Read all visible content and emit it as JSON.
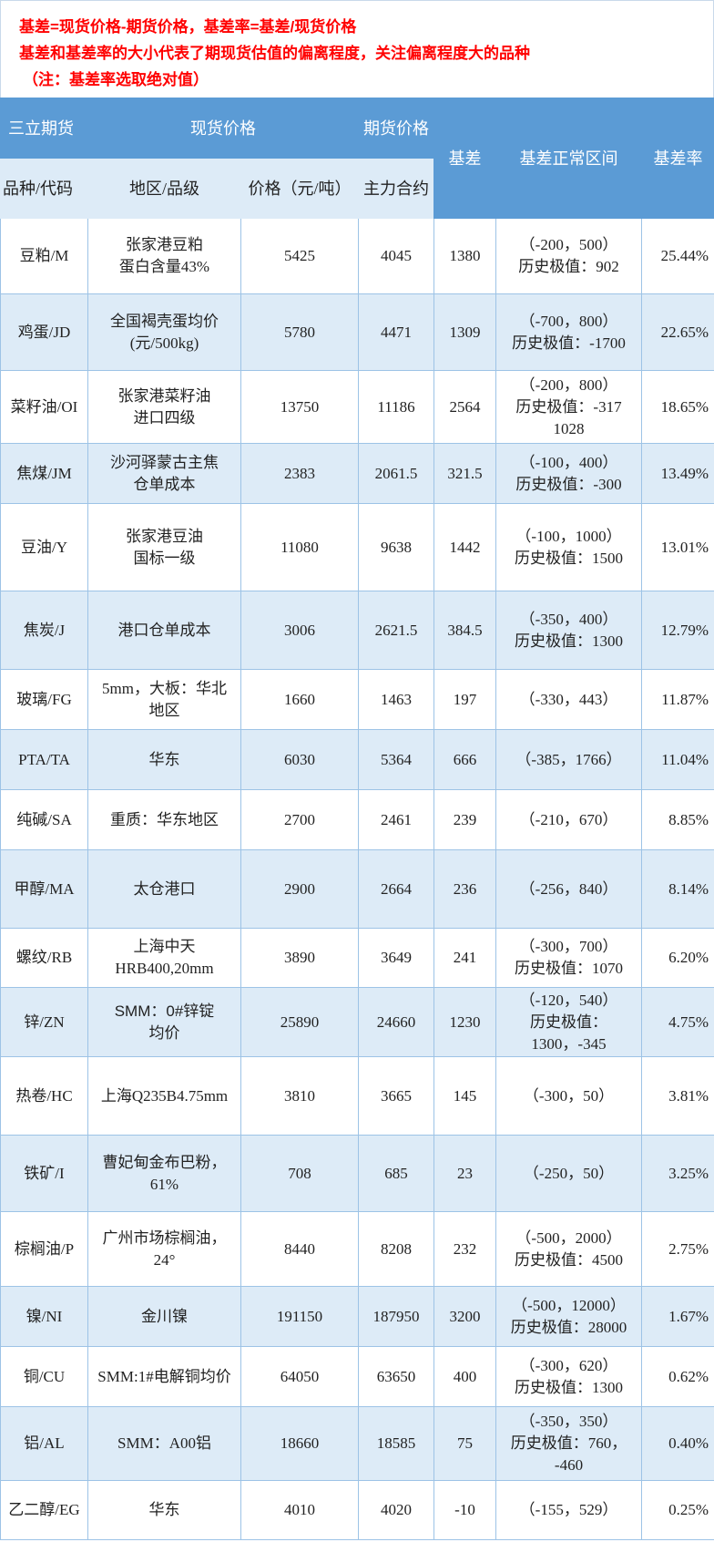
{
  "notes": [
    "基差=现货价格-期货价格，基差率=基差/现货价格",
    "基差和基差率的大小代表了期现货估值的偏离程度，关注偏离程度大的品种",
    "（注：基差率选取绝对值）"
  ],
  "header": {
    "company": "三立期货",
    "spot": "现货价格",
    "futures": "期货价格",
    "basis": "基差",
    "range": "基差正常区间",
    "rate": "基差率",
    "variety": "品种/代码",
    "region": "地区/品级",
    "price": "价格（元/吨）",
    "contract": "主力合约"
  },
  "colors": {
    "header_bg": "#5b9bd5",
    "alt_row": "#ddebf7",
    "note_text": "#ff0000"
  },
  "rows": [
    {
      "v": "豆粕/M",
      "r": "张家港豆粕\n蛋白含量43%",
      "p": "5425",
      "f": "4045",
      "b": "1380",
      "g": "（-200，500）\n历史极值：902",
      "rate": "25.44%"
    },
    {
      "v": "鸡蛋/JD",
      "r": "全国褐壳蛋均价\n(元/500kg)",
      "p": "5780",
      "f": "4471",
      "b": "1309",
      "g": "（-700，800）\n历史极值：-1700",
      "rate": "22.65%"
    },
    {
      "v": "菜籽油/OI",
      "r": "张家港菜籽油\n进口四级",
      "p": "13750",
      "f": "11186",
      "b": "2564",
      "g": "（-200，800）\n历史极值：-317\n1028",
      "rate": "18.65%"
    },
    {
      "v": "焦煤/JM",
      "r": "沙河驿蒙古主焦\n仓单成本",
      "p": "2383",
      "f": "2061.5",
      "b": "321.5",
      "g": "（-100，400）\n历史极值：-300",
      "rate": "13.49%"
    },
    {
      "v": "豆油/Y",
      "r": "张家港豆油\n国标一级",
      "p": "11080",
      "f": "9638",
      "b": "1442",
      "g": "（-100，1000）\n历史极值：1500",
      "rate": "13.01%"
    },
    {
      "v": "焦炭/J",
      "r": "港口仓单成本",
      "p": "3006",
      "f": "2621.5",
      "b": "384.5",
      "g": "（-350，400）\n历史极值：1300",
      "rate": "12.79%"
    },
    {
      "v": "玻璃/FG",
      "r": "5mm，大板：华北\n地区",
      "p": "1660",
      "f": "1463",
      "b": "197",
      "g": "（-330，443）",
      "rate": "11.87%"
    },
    {
      "v": "PTA/TA",
      "r": "华东",
      "p": "6030",
      "f": "5364",
      "b": "666",
      "g": "（-385，1766）",
      "rate": "11.04%"
    },
    {
      "v": "纯碱/SA",
      "r": "重质：华东地区",
      "p": "2700",
      "f": "2461",
      "b": "239",
      "g": "（-210，670）",
      "rate": "8.85%"
    },
    {
      "v": "甲醇/MA",
      "r": "太仓港口",
      "p": "2900",
      "f": "2664",
      "b": "236",
      "g": "（-256，840）",
      "rate": "8.14%"
    },
    {
      "v": "螺纹/RB",
      "r": "上海中天\nHRB400,20mm",
      "p": "3890",
      "f": "3649",
      "b": "241",
      "g": "（-300，700）\n历史极值：1070",
      "rate": "6.20%"
    },
    {
      "v": "锌/ZN",
      "r": "SMM：0#锌锭\n均价",
      "p": "25890",
      "f": "24660",
      "b": "1230",
      "g": "（-120，540）\n历史极值：\n1300，-345",
      "rate": "4.75%"
    },
    {
      "v": "热卷/HC",
      "r": "上海Q235B4.75mm",
      "p": "3810",
      "f": "3665",
      "b": "145",
      "g": "（-300，50）",
      "rate": "3.81%"
    },
    {
      "v": "铁矿/I",
      "r": "曹妃甸金布巴粉，\n61%",
      "p": "708",
      "f": "685",
      "b": "23",
      "g": "（-250，50）",
      "rate": "3.25%"
    },
    {
      "v": "棕榈油/P",
      "r": "广州市场棕榈油，\n24°",
      "p": "8440",
      "f": "8208",
      "b": "232",
      "g": "（-500，2000）\n历史极值：4500",
      "rate": "2.75%"
    },
    {
      "v": "镍/NI",
      "r": "金川镍",
      "p": "191150",
      "f": "187950",
      "b": "3200",
      "g": "（-500，12000）\n历史极值：28000",
      "rate": "1.67%"
    },
    {
      "v": "铜/CU",
      "r": "SMM:1#电解铜均价",
      "p": "64050",
      "f": "63650",
      "b": "400",
      "g": "（-300，620）\n历史极值：1300",
      "rate": "0.62%"
    },
    {
      "v": "铝/AL",
      "r": "SMM：A00铝",
      "p": "18660",
      "f": "18585",
      "b": "75",
      "g": "（-350，350）\n历史极值：760，\n-460",
      "rate": "0.40%"
    },
    {
      "v": "乙二醇/EG",
      "r": "华东",
      "p": "4010",
      "f": "4020",
      "b": "-10",
      "g": "（-155，529）",
      "rate": "0.25%"
    }
  ]
}
